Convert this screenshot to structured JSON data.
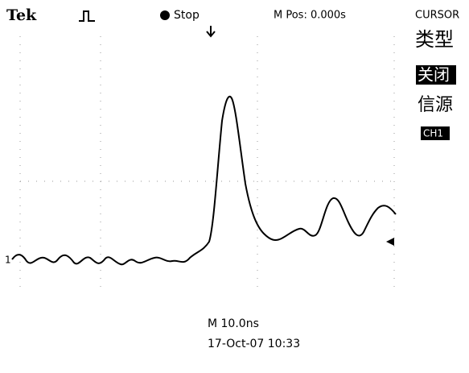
{
  "header": {
    "brand": "Tek",
    "state": "Stop",
    "position": "M Pos: 0.000s"
  },
  "menu": {
    "title": "CURSOR",
    "type_label": "类型",
    "type_value": "关闭",
    "source_label": "信源",
    "source_value": "CH1"
  },
  "channel_marker": "1",
  "footer": {
    "timebase": "M 10.0ns",
    "datetime": "17-Oct-07 10:33"
  }
}
